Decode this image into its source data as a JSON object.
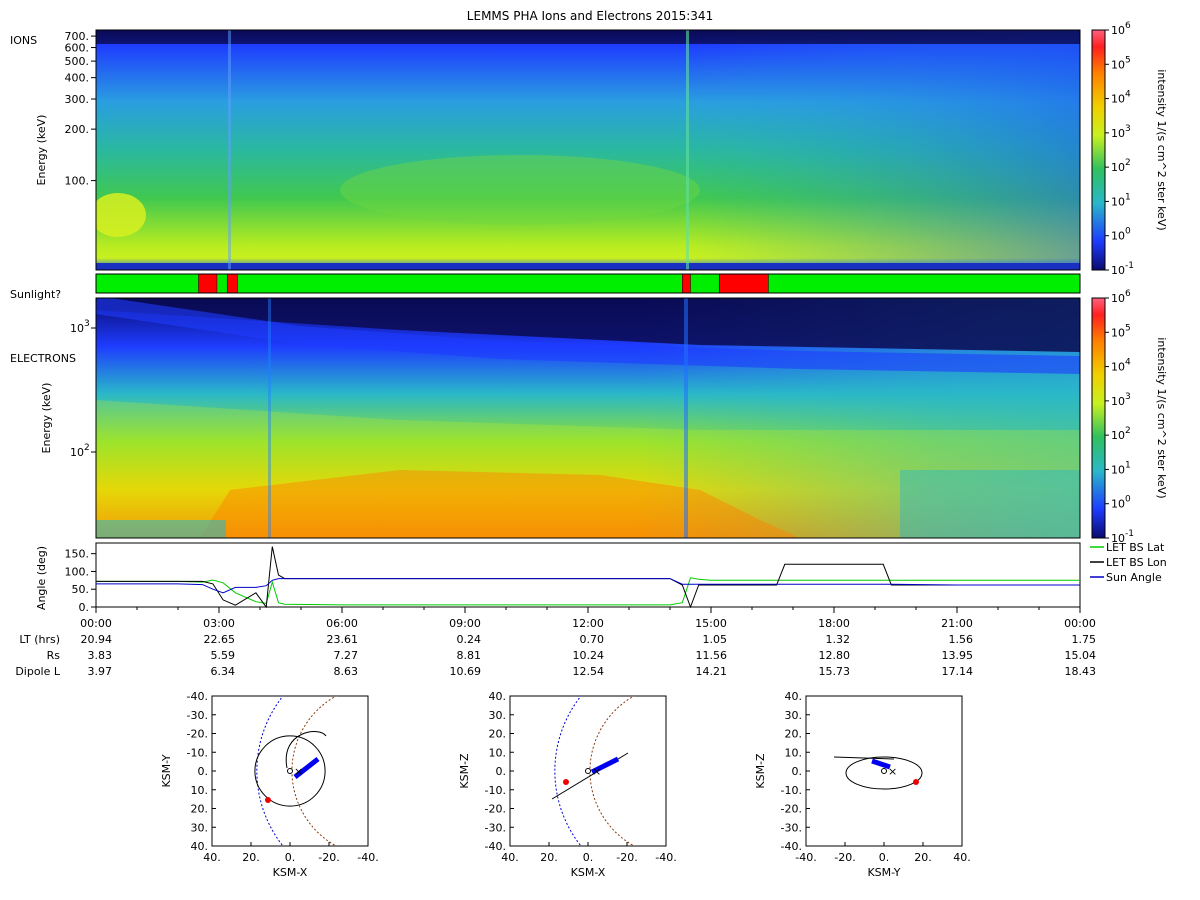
{
  "title": "LEMMS PHA Ions and Electrons  2015:341",
  "colorbar": {
    "label": "intensity 1/(s cm^2 ster keV)",
    "ticks": [
      {
        "base": "10",
        "exp": "-1"
      },
      {
        "base": "10",
        "exp": "0"
      },
      {
        "base": "10",
        "exp": "1"
      },
      {
        "base": "10",
        "exp": "2"
      },
      {
        "base": "10",
        "exp": "3"
      },
      {
        "base": "10",
        "exp": "4"
      },
      {
        "base": "10",
        "exp": "5"
      },
      {
        "base": "10",
        "exp": "6"
      }
    ],
    "scale": "log",
    "range": [
      0.1,
      1000000
    ],
    "colors": [
      "#0a0a6e",
      "#1e3cff",
      "#2ab8c8",
      "#30c060",
      "#c8f020",
      "#f0d000",
      "#ff8000",
      "#ff2020",
      "#ff6080"
    ]
  },
  "ions": {
    "label": "IONS",
    "ylabel": "Energy (keV)",
    "ticks": [
      "700.",
      "600.",
      "500.",
      "400.",
      "300.",
      "200.",
      "100."
    ],
    "scale": "log"
  },
  "sunlight": {
    "label": "Sunlight?",
    "colors": {
      "sun": "#00ee00",
      "shadow": "#ff0000"
    },
    "shadow_intervals_hours": [
      [
        2.5,
        2.95
      ],
      [
        3.2,
        3.45
      ],
      [
        14.3,
        14.5
      ],
      [
        15.2,
        16.4
      ]
    ]
  },
  "electrons": {
    "label": "ELECTRONS",
    "ylabel": "Energy (keV)",
    "ticks": [
      {
        "base": "10",
        "exp": "3"
      },
      {
        "base": "10",
        "exp": "2"
      }
    ],
    "scale": "log"
  },
  "angle_panel": {
    "ylabel": "Angle (deg)",
    "ticks": [
      "150.",
      "100.",
      "50.",
      "0."
    ],
    "legend": [
      {
        "label": "LET BS Lat",
        "color": "#00cc00"
      },
      {
        "label": "LET BS Lon",
        "color": "#000000"
      },
      {
        "label": "Sun Angle",
        "color": "#0000cc"
      }
    ]
  },
  "time_axis": [
    "00:00",
    "03:00",
    "06:00",
    "09:00",
    "12:00",
    "15:00",
    "18:00",
    "21:00",
    "00:00"
  ],
  "ephemeris": {
    "rows": [
      {
        "label": "LT (hrs)",
        "values": [
          "20.94",
          "22.65",
          "23.61",
          "0.24",
          "0.70",
          "1.05",
          "1.32",
          "1.56",
          "1.75"
        ]
      },
      {
        "label": "Rs",
        "values": [
          "3.83",
          "5.59",
          "7.27",
          "8.81",
          "10.24",
          "11.56",
          "12.80",
          "13.95",
          "15.04"
        ]
      },
      {
        "label": "Dipole L",
        "values": [
          "3.97",
          "6.34",
          "8.63",
          "10.69",
          "12.54",
          "14.21",
          "15.73",
          "17.14",
          "18.43"
        ]
      }
    ]
  },
  "orbit_plots": [
    {
      "xlabel": "KSM-X",
      "ylabel": "KSM-Y",
      "xticks": [
        "40.",
        "20.",
        "0.",
        "-20.",
        "-40."
      ],
      "yticks": [
        "-40.",
        "-30.",
        "-20.",
        "-10.",
        "0.",
        "10.",
        "20.",
        "30.",
        "40."
      ]
    },
    {
      "xlabel": "KSM-X",
      "ylabel": "KSM-Z",
      "xticks": [
        "40.",
        "20.",
        "0.",
        "-20.",
        "-40."
      ],
      "yticks": [
        "40.",
        "30.",
        "20.",
        "10.",
        "0.",
        "-10.",
        "-20.",
        "-30.",
        "-40."
      ]
    },
    {
      "xlabel": "KSM-Y",
      "ylabel": "KSM-Z",
      "xticks": [
        "-40.",
        "-20.",
        "0.",
        "20.",
        "40."
      ],
      "yticks": [
        "40.",
        "30.",
        "20.",
        "10.",
        "0.",
        "-10.",
        "-20.",
        "-30.",
        "-40."
      ]
    }
  ],
  "chart_data": [
    {
      "type": "heatmap",
      "title": "LEMMS PHA Ions and Electrons  2015:341",
      "panel": "IONS",
      "xlabel": "",
      "ylabel": "Energy (keV)",
      "x": [
        "00:00",
        "03:00",
        "06:00",
        "09:00",
        "12:00",
        "15:00",
        "18:00",
        "21:00",
        "00:00"
      ],
      "yscale": "log",
      "yticks": [
        700,
        600,
        500,
        400,
        300,
        200,
        100
      ],
      "colorbar_label": "intensity 1/(s cm^2 ster keV)",
      "colorbar_range": [
        0.1,
        1000000
      ]
    },
    {
      "type": "heatmap",
      "panel": "ELECTRONS",
      "xlabel": "",
      "ylabel": "Energy (keV)",
      "x": [
        "00:00",
        "03:00",
        "06:00",
        "09:00",
        "12:00",
        "15:00",
        "18:00",
        "21:00",
        "00:00"
      ],
      "yscale": "log",
      "yticks": [
        1000,
        100
      ],
      "colorbar_label": "intensity 1/(s cm^2 ster keV)",
      "colorbar_range": [
        0.1,
        1000000
      ]
    },
    {
      "type": "line",
      "panel": "angles",
      "ylabel": "Angle (deg)",
      "ylim": [
        0,
        180
      ],
      "x_hours": [
        0,
        2,
        2.6,
        2.85,
        3.1,
        3.4,
        3.9,
        4.15,
        4.3,
        4.45,
        4.6,
        6,
        9,
        12,
        14.0,
        14.3,
        14.5,
        14.7,
        15,
        16.6,
        16.8,
        18,
        19.2,
        19.4,
        21,
        24
      ],
      "series": [
        {
          "name": "LET BS Lat",
          "values": [
            72,
            72,
            70,
            76,
            68,
            40,
            15,
            10,
            70,
            12,
            8,
            6,
            6,
            6,
            6,
            12,
            82,
            78,
            75,
            75,
            75,
            75,
            75,
            75,
            75,
            75
          ]
        },
        {
          "name": "LET BS Lon",
          "values": [
            72,
            72,
            72,
            65,
            20,
            5,
            40,
            0,
            170,
            90,
            80,
            80,
            80,
            80,
            80,
            62,
            0,
            62,
            62,
            62,
            120,
            120,
            120,
            62,
            62,
            62
          ]
        },
        {
          "name": "Sun Angle",
          "values": [
            65,
            65,
            63,
            50,
            40,
            55,
            55,
            60,
            75,
            80,
            80,
            80,
            80,
            80,
            80,
            64,
            64,
            64,
            64,
            64,
            64,
            64,
            64,
            64,
            62,
            62
          ]
        }
      ]
    }
  ]
}
